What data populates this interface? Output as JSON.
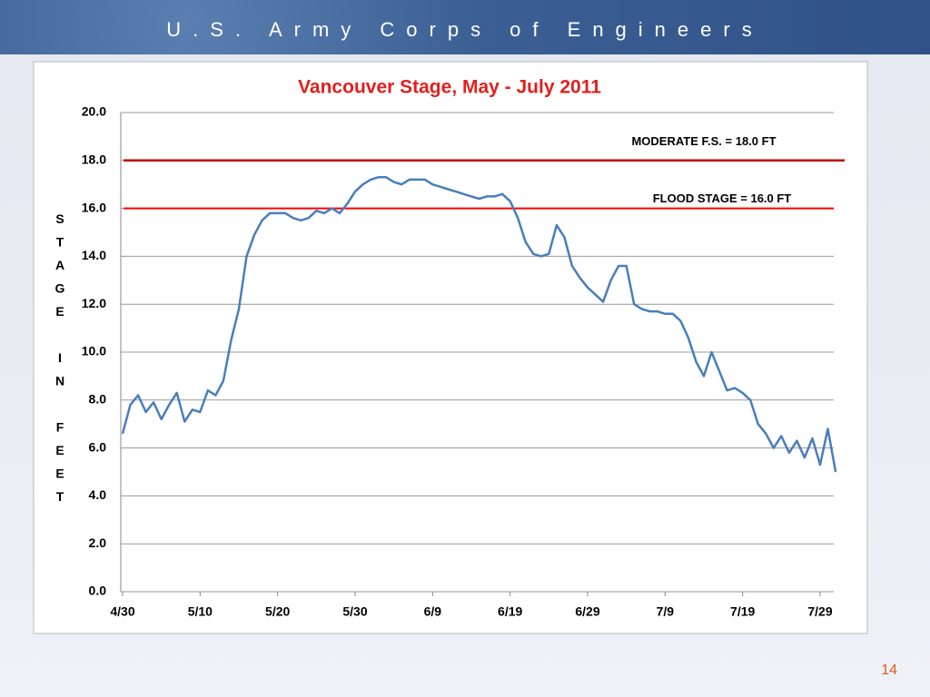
{
  "header": {
    "title": "U.S. Army Corps of Engineers"
  },
  "chart_data": {
    "type": "line",
    "title": "Vancouver Stage, May  - July 2011",
    "y_label": "STAGE IN FEET",
    "categories": [
      "4/30",
      null,
      null,
      null,
      null,
      null,
      null,
      null,
      null,
      null,
      "5/10",
      null,
      null,
      null,
      null,
      null,
      null,
      null,
      null,
      null,
      "5/20",
      null,
      null,
      null,
      null,
      null,
      null,
      null,
      null,
      null,
      "5/30",
      null,
      null,
      null,
      null,
      null,
      null,
      null,
      null,
      null,
      "6/9",
      null,
      null,
      null,
      null,
      null,
      null,
      null,
      null,
      null,
      "6/19",
      null,
      null,
      null,
      null,
      null,
      null,
      null,
      null,
      null,
      "6/29",
      null,
      null,
      null,
      null,
      null,
      null,
      null,
      null,
      null,
      "7/9",
      null,
      null,
      null,
      null,
      null,
      null,
      null,
      null,
      null,
      "7/19",
      null,
      null,
      null,
      null,
      null,
      null,
      null,
      null,
      null,
      "7/29",
      null,
      null
    ],
    "series": [
      {
        "name": "Vancouver Stage",
        "color": "#4a7ebb",
        "values": [
          6.6,
          7.8,
          8.2,
          7.5,
          7.9,
          7.2,
          7.8,
          8.3,
          7.1,
          7.6,
          7.5,
          8.4,
          8.2,
          8.8,
          10.5,
          11.8,
          14.0,
          14.9,
          15.5,
          15.8,
          15.8,
          15.8,
          15.6,
          15.5,
          15.6,
          15.9,
          15.8,
          16.0,
          15.8,
          16.2,
          16.7,
          17.0,
          17.2,
          17.3,
          17.3,
          17.1,
          17.0,
          17.2,
          17.2,
          17.2,
          17.0,
          16.9,
          16.8,
          16.7,
          16.6,
          16.5,
          16.4,
          16.5,
          16.5,
          16.6,
          16.3,
          15.6,
          14.6,
          14.1,
          14.0,
          14.1,
          15.3,
          14.8,
          13.6,
          13.1,
          12.7,
          12.4,
          12.1,
          13.0,
          13.6,
          13.6,
          12.0,
          11.8,
          11.7,
          11.7,
          11.6,
          11.6,
          11.3,
          10.6,
          9.6,
          9.0,
          10.0,
          9.2,
          8.4,
          8.5,
          8.3,
          8.0,
          7.0,
          6.6,
          6.0,
          6.5,
          5.8,
          6.3,
          5.6,
          6.4,
          5.3,
          6.8,
          5.0
        ]
      }
    ],
    "ylim": [
      0,
      20
    ],
    "yticks": [
      {
        "value": 0,
        "label": "0.0"
      },
      {
        "value": 2,
        "label": "2.0"
      },
      {
        "value": 4,
        "label": "4.0"
      },
      {
        "value": 6,
        "label": "6.0"
      },
      {
        "value": 8,
        "label": "8.0"
      },
      {
        "value": 10,
        "label": "10.0"
      },
      {
        "value": 12,
        "label": "12.0"
      },
      {
        "value": 14,
        "label": "14.0"
      },
      {
        "value": 16,
        "label": "16.0"
      },
      {
        "value": 18,
        "label": "18.0"
      },
      {
        "value": 20,
        "label": "20.0"
      }
    ],
    "grid": true,
    "reference_lines": [
      {
        "value": 18,
        "label": "MODERATE  F.S. = 18.0 FT",
        "color": "#c00000"
      },
      {
        "value": 16,
        "label": "FLOOD STAGE = 16.0  FT",
        "color": "#ff0000"
      }
    ]
  },
  "page_number": "14"
}
